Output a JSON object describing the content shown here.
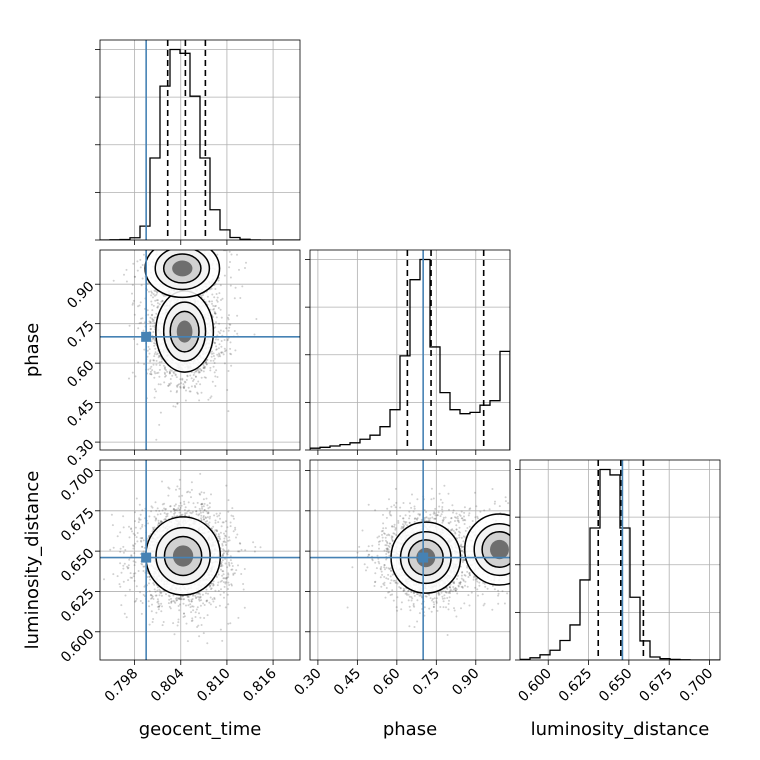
{
  "chart_data": {
    "type": "corner",
    "parameters": [
      "geocent_time",
      "phase",
      "luminosity_distance"
    ],
    "axes": {
      "geocent_time": {
        "label": "geocent_time",
        "range": [
          0.7935,
          0.8195
        ],
        "ticks": [
          0.798,
          0.804,
          0.81,
          0.816
        ],
        "tick_labels": [
          "0.798",
          "0.804",
          "0.810",
          "0.816"
        ]
      },
      "phase": {
        "label": "phase",
        "range": [
          0.27,
          1.03
        ],
        "ticks": [
          0.3,
          0.45,
          0.6,
          0.75,
          0.9
        ],
        "tick_labels": [
          "0.30",
          "0.45",
          "0.60",
          "0.75",
          "0.90"
        ]
      },
      "luminosity_distance": {
        "label": "luminosity_distance",
        "range": [
          0.5825,
          0.7065
        ],
        "ticks": [
          0.6,
          0.625,
          0.65,
          0.675,
          0.7
        ],
        "tick_labels": [
          "0.600",
          "0.625",
          "0.650",
          "0.675",
          "0.700"
        ]
      }
    },
    "truths": {
      "geocent_time": 0.7995,
      "phase": 0.7,
      "luminosity_distance": 0.646
    },
    "quantiles": {
      "geocent_time": [
        0.8023,
        0.8046,
        0.8072
      ],
      "phase": [
        0.64,
        0.73,
        0.93
      ],
      "luminosity_distance": [
        0.631,
        0.645,
        0.659
      ]
    },
    "histograms": {
      "geocent_time": {
        "edges": [
          0.7935,
          0.7948,
          0.7961,
          0.7974,
          0.7987,
          0.8,
          0.8013,
          0.8026,
          0.8039,
          0.8052,
          0.8065,
          0.8078,
          0.8091,
          0.8104,
          0.8117,
          0.813,
          0.8143,
          0.8156,
          0.8169,
          0.8182,
          0.8195
        ],
        "counts": [
          0,
          2,
          4,
          18,
          110,
          650,
          1220,
          1510,
          1480,
          1140,
          650,
          240,
          80,
          20,
          6,
          1,
          0,
          0,
          0,
          0
        ]
      },
      "phase": {
        "edges": [
          0.27,
          0.308,
          0.346,
          0.384,
          0.422,
          0.46,
          0.498,
          0.536,
          0.574,
          0.612,
          0.65,
          0.688,
          0.726,
          0.764,
          0.802,
          0.84,
          0.878,
          0.916,
          0.954,
          0.992,
          1.03
        ],
        "counts": [
          4,
          6,
          9,
          12,
          16,
          24,
          33,
          52,
          90,
          210,
          380,
          425,
          230,
          128,
          90,
          81,
          84,
          100,
          110,
          220
        ]
      },
      "luminosity_distance": {
        "edges": [
          0.5825,
          0.5887,
          0.5949,
          0.6011,
          0.6073,
          0.6135,
          0.6197,
          0.6259,
          0.6321,
          0.6383,
          0.6445,
          0.6507,
          0.6569,
          0.6631,
          0.6693,
          0.6755,
          0.6817,
          0.6879,
          0.6941,
          0.7003,
          0.7065
        ],
        "counts": [
          3,
          10,
          24,
          45,
          90,
          162,
          370,
          610,
          880,
          855,
          610,
          290,
          88,
          14,
          6,
          3,
          1,
          0,
          0,
          0
        ]
      }
    },
    "density": {
      "phase_vs_geocent_time": {
        "peaks": [
          {
            "x": 0.8045,
            "y": 0.72,
            "sx": 0.0017,
            "sy": 0.07
          },
          {
            "x": 0.8042,
            "y": 0.96,
            "sx": 0.0022,
            "sy": 0.05
          }
        ]
      },
      "luminosity_distance_vs_geocent_time": {
        "peaks": [
          {
            "x": 0.8043,
            "y": 0.647,
            "sx": 0.0022,
            "sy": 0.011
          }
        ]
      },
      "luminosity_distance_vs_phase": {
        "peaks": [
          {
            "x": 0.71,
            "y": 0.646,
            "sx": 0.06,
            "sy": 0.01
          },
          {
            "x": 0.99,
            "y": 0.651,
            "sx": 0.06,
            "sy": 0.01
          }
        ]
      }
    },
    "grid": true,
    "colors": {
      "truth": "#4682b4",
      "hist": "#000000",
      "points": "#444444"
    }
  }
}
